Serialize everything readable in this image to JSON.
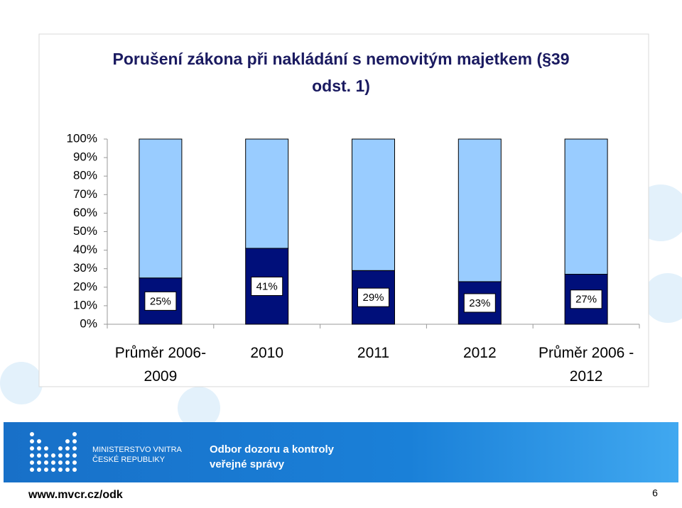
{
  "chart_data": {
    "type": "stacked_bar",
    "title": "Porušení zákona při nakládání s nemovitým majetkem (§39 odst. 1)",
    "categories": [
      "Průměr 2006-2009",
      "2010",
      "2011",
      "2012",
      "Průměr 2006 - 2012"
    ],
    "series": [
      {
        "color": "#000f7a",
        "values": [
          25,
          41,
          29,
          23,
          27
        ],
        "value_labels": [
          "25%",
          "41%",
          "29%",
          "23%",
          "27%"
        ]
      },
      {
        "color": "#99ccff",
        "values": [
          75,
          59,
          71,
          77,
          73
        ]
      }
    ],
    "ylim": [
      0,
      100
    ],
    "yticks": [
      {
        "value": 0,
        "label": "0%"
      },
      {
        "value": 10,
        "label": "10%"
      },
      {
        "value": 20,
        "label": "20%"
      },
      {
        "value": 30,
        "label": "30%"
      },
      {
        "value": 40,
        "label": "40%"
      },
      {
        "value": 50,
        "label": "50%"
      },
      {
        "value": 60,
        "label": "60%"
      },
      {
        "value": 70,
        "label": "70%"
      },
      {
        "value": 80,
        "label": "80%"
      },
      {
        "value": 90,
        "label": "90%"
      },
      {
        "value": 100,
        "label": "100%"
      }
    ]
  },
  "footer": {
    "ministry_line1": "MINISTERSTVO VNITRA",
    "ministry_line2": "ČESKÉ REPUBLIKY",
    "department_line1": "Odbor dozoru a kontroly",
    "department_line2": "veřejné správy",
    "url": "www.mvcr.cz/odk",
    "page_number": "6"
  }
}
